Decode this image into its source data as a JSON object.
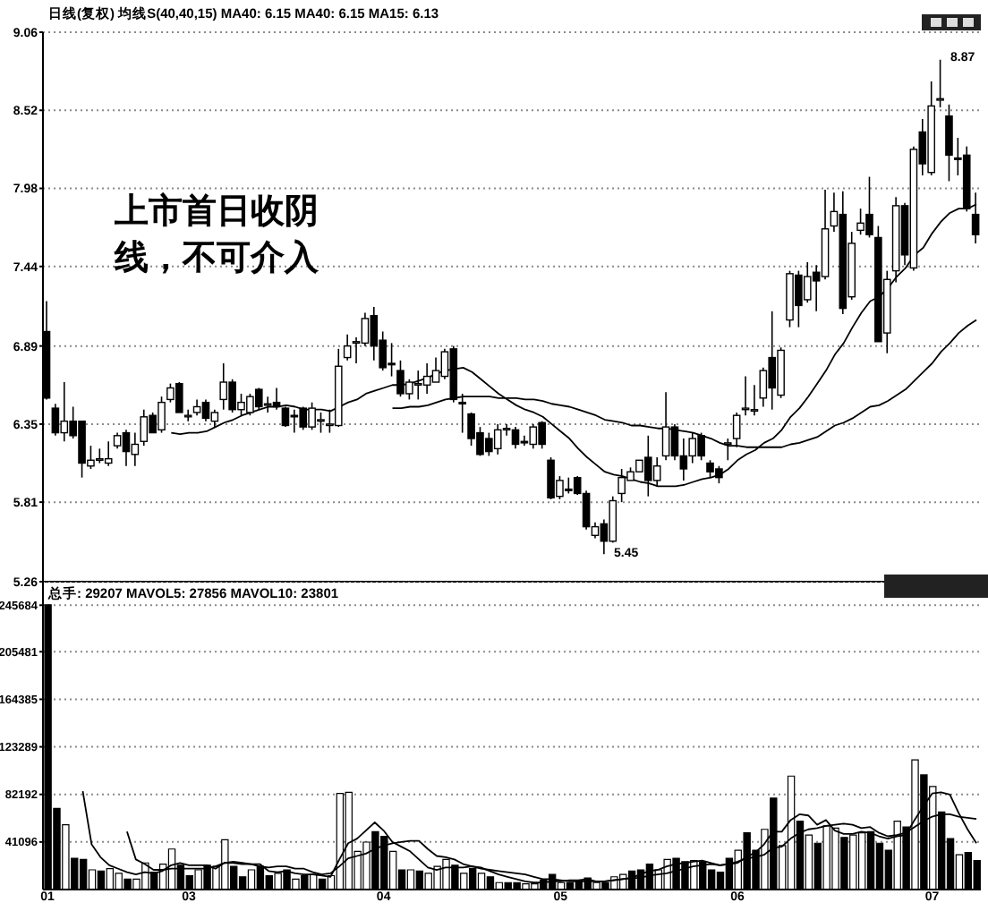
{
  "chart_data": [
    {
      "type": "candlestick",
      "title": "日线(复权) 均线S(40,40,15) MA40: 6.15 MA40: 6.15 MA15: 6.13",
      "categories": [
        "01",
        null,
        null,
        null,
        null,
        null,
        null,
        null,
        null,
        null,
        null,
        null,
        null,
        null,
        null,
        null,
        "03",
        null,
        null,
        null,
        null,
        null,
        null,
        null,
        null,
        null,
        null,
        null,
        null,
        null,
        null,
        null,
        null,
        null,
        null,
        null,
        null,
        null,
        "04",
        null,
        null,
        null,
        null,
        null,
        null,
        null,
        null,
        null,
        null,
        null,
        null,
        null,
        null,
        null,
        null,
        null,
        null,
        null,
        "05",
        null,
        null,
        null,
        null,
        null,
        null,
        null,
        null,
        null,
        null,
        null,
        null,
        null,
        null,
        null,
        null,
        null,
        null,
        null,
        "06",
        null,
        null,
        null,
        null,
        null,
        null,
        null,
        null,
        null,
        null,
        null,
        null,
        null,
        null,
        null,
        null,
        null,
        null,
        null,
        null,
        null,
        "07",
        null,
        null,
        null,
        null,
        null
      ],
      "tick_labels": "y",
      "ylim": [
        5.26,
        9.06
      ],
      "yticks": [
        5.26,
        5.81,
        6.35,
        6.89,
        7.44,
        7.98,
        8.52,
        9.06
      ],
      "grid": "y",
      "ohlc": [
        [
          6.99,
          7.2,
          6.52,
          6.53
        ],
        [
          6.46,
          6.49,
          6.27,
          6.29
        ],
        [
          6.29,
          6.64,
          6.23,
          6.37
        ],
        [
          6.37,
          6.47,
          6.25,
          6.27
        ],
        [
          6.37,
          6.37,
          5.98,
          6.08
        ],
        [
          6.06,
          6.2,
          6.04,
          6.1
        ],
        [
          6.1,
          6.18,
          6.08,
          6.11
        ],
        [
          6.08,
          6.23,
          6.06,
          6.11
        ],
        [
          6.2,
          6.29,
          6.18,
          6.27
        ],
        [
          6.29,
          6.31,
          6.06,
          6.16
        ],
        [
          6.14,
          6.29,
          6.06,
          6.21
        ],
        [
          6.23,
          6.45,
          6.2,
          6.4
        ],
        [
          6.41,
          6.43,
          6.29,
          6.29
        ],
        [
          6.31,
          6.54,
          6.29,
          6.5
        ],
        [
          6.52,
          6.63,
          6.5,
          6.6
        ],
        [
          6.63,
          6.64,
          6.43,
          6.43
        ],
        [
          6.4,
          6.45,
          6.37,
          6.41
        ],
        [
          6.43,
          6.52,
          6.41,
          6.47
        ],
        [
          6.5,
          6.52,
          6.37,
          6.39
        ],
        [
          6.37,
          6.45,
          6.33,
          6.43
        ],
        [
          6.52,
          6.77,
          6.45,
          6.64
        ],
        [
          6.64,
          6.66,
          6.43,
          6.45
        ],
        [
          6.45,
          6.56,
          6.41,
          6.5
        ],
        [
          6.43,
          6.56,
          6.41,
          6.54
        ],
        [
          6.59,
          6.6,
          6.45,
          6.47
        ],
        [
          6.48,
          6.54,
          6.43,
          6.49
        ],
        [
          6.5,
          6.6,
          6.45,
          6.47
        ],
        [
          6.46,
          6.47,
          6.33,
          6.34
        ],
        [
          6.41,
          6.45,
          6.29,
          6.4
        ],
        [
          6.46,
          6.47,
          6.31,
          6.33
        ],
        [
          6.33,
          6.5,
          6.31,
          6.46
        ],
        [
          6.37,
          6.43,
          6.29,
          6.38
        ],
        [
          6.34,
          6.45,
          6.29,
          6.35
        ],
        [
          6.34,
          6.87,
          6.33,
          6.75
        ],
        [
          6.81,
          6.97,
          6.79,
          6.89
        ],
        [
          6.91,
          6.95,
          6.77,
          6.92
        ],
        [
          6.91,
          7.12,
          6.89,
          7.08
        ],
        [
          7.1,
          7.16,
          6.79,
          6.89
        ],
        [
          6.93,
          6.99,
          6.72,
          6.74
        ],
        [
          6.77,
          6.91,
          6.68,
          6.76
        ],
        [
          6.72,
          6.79,
          6.54,
          6.56
        ],
        [
          6.56,
          6.66,
          6.52,
          6.64
        ],
        [
          6.62,
          6.72,
          6.52,
          6.63
        ],
        [
          6.62,
          6.77,
          6.56,
          6.68
        ],
        [
          6.64,
          6.81,
          6.64,
          6.72
        ],
        [
          6.68,
          6.87,
          6.66,
          6.85
        ],
        [
          6.87,
          6.89,
          6.5,
          6.52
        ],
        [
          6.5,
          6.56,
          6.29,
          6.49
        ],
        [
          6.42,
          6.43,
          6.2,
          6.25
        ],
        [
          6.29,
          6.33,
          6.13,
          6.14
        ],
        [
          6.25,
          6.29,
          6.13,
          6.16
        ],
        [
          6.18,
          6.35,
          6.14,
          6.31
        ],
        [
          6.31,
          6.35,
          6.27,
          6.32
        ],
        [
          6.31,
          6.33,
          6.18,
          6.21
        ],
        [
          6.23,
          6.27,
          6.2,
          6.22
        ],
        [
          6.21,
          6.35,
          6.18,
          6.33
        ],
        [
          6.36,
          6.37,
          6.18,
          6.21
        ],
        [
          6.1,
          6.12,
          5.83,
          5.84
        ],
        [
          5.85,
          5.99,
          5.83,
          5.96
        ],
        [
          5.9,
          5.98,
          5.87,
          5.89
        ],
        [
          5.98,
          5.99,
          5.86,
          5.87
        ],
        [
          5.87,
          5.89,
          5.62,
          5.64
        ],
        [
          5.58,
          5.67,
          5.56,
          5.64
        ],
        [
          5.66,
          5.69,
          5.45,
          5.54
        ],
        [
          5.54,
          5.85,
          5.53,
          5.82
        ],
        [
          5.87,
          6.04,
          5.81,
          5.98
        ],
        [
          5.96,
          6.05,
          5.96,
          6.02
        ],
        [
          6.02,
          6.1,
          6.02,
          6.1
        ],
        [
          6.12,
          6.27,
          5.85,
          5.96
        ],
        [
          5.96,
          6.12,
          5.92,
          6.06
        ],
        [
          6.13,
          6.57,
          6.1,
          6.33
        ],
        [
          6.33,
          6.35,
          6.1,
          6.13
        ],
        [
          6.13,
          6.25,
          5.96,
          6.04
        ],
        [
          6.13,
          6.29,
          6.08,
          6.25
        ],
        [
          6.27,
          6.29,
          6.1,
          6.13
        ],
        [
          6.08,
          6.1,
          5.98,
          6.02
        ],
        [
          6.04,
          6.06,
          5.94,
          5.98
        ],
        [
          6.21,
          6.25,
          6.1,
          6.22
        ],
        [
          6.25,
          6.43,
          6.19,
          6.41
        ],
        [
          6.45,
          6.68,
          6.41,
          6.46
        ],
        [
          6.44,
          6.62,
          6.41,
          6.45
        ],
        [
          6.53,
          6.74,
          6.47,
          6.72
        ],
        [
          6.81,
          7.13,
          6.45,
          6.6
        ],
        [
          6.55,
          6.88,
          6.53,
          6.86
        ],
        [
          7.07,
          7.41,
          7.02,
          7.39
        ],
        [
          7.38,
          7.41,
          7.02,
          7.17
        ],
        [
          7.21,
          7.47,
          7.19,
          7.37
        ],
        [
          7.4,
          7.45,
          7.13,
          7.34
        ],
        [
          7.37,
          7.97,
          7.35,
          7.7
        ],
        [
          7.72,
          7.95,
          7.68,
          7.82
        ],
        [
          7.8,
          7.96,
          7.11,
          7.15
        ],
        [
          7.23,
          7.68,
          7.21,
          7.6
        ],
        [
          7.69,
          7.84,
          7.66,
          7.74
        ],
        [
          7.8,
          8.06,
          7.64,
          7.66
        ],
        [
          7.64,
          7.72,
          6.92,
          6.92
        ],
        [
          6.98,
          7.41,
          6.84,
          7.35
        ],
        [
          7.41,
          7.92,
          7.33,
          7.86
        ],
        [
          7.86,
          7.88,
          7.45,
          7.52
        ],
        [
          7.43,
          8.27,
          7.41,
          8.25
        ],
        [
          8.37,
          8.46,
          8.07,
          8.15
        ],
        [
          8.09,
          8.72,
          8.07,
          8.55
        ],
        [
          8.59,
          8.87,
          8.54,
          8.6
        ],
        [
          8.48,
          8.56,
          8.03,
          8.21
        ],
        [
          8.19,
          8.33,
          8.07,
          8.18
        ],
        [
          8.21,
          8.27,
          7.82,
          7.84
        ],
        [
          7.8,
          7.95,
          7.6,
          7.66
        ]
      ],
      "colors": [
        "#000000",
        "#000000",
        "#ffffff",
        "#000000",
        "#000000",
        "#ffffff",
        "#ffffff",
        "#ffffff",
        "#ffffff",
        "#000000",
        "#ffffff",
        "#ffffff",
        "#000000",
        "#ffffff",
        "#ffffff",
        "#000000",
        "#ffffff",
        "#ffffff",
        "#000000",
        "#ffffff",
        "#ffffff",
        "#000000",
        "#ffffff",
        "#ffffff",
        "#000000",
        "#ffffff",
        "#000000",
        "#000000",
        "#000000",
        "#000000",
        "#ffffff",
        "#ffffff",
        "#ffffff",
        "#ffffff",
        "#ffffff",
        "#ffffff",
        "#ffffff",
        "#000000",
        "#000000",
        "#000000",
        "#000000",
        "#ffffff",
        "#ffffff",
        "#ffffff",
        "#ffffff",
        "#ffffff",
        "#000000",
        "#000000",
        "#000000",
        "#000000",
        "#000000",
        "#ffffff",
        "#ffffff",
        "#000000",
        "#000000",
        "#ffffff",
        "#000000",
        "#000000",
        "#ffffff",
        "#000000",
        "#000000",
        "#000000",
        "#ffffff",
        "#000000",
        "#ffffff",
        "#ffffff",
        "#ffffff",
        "#ffffff",
        "#000000",
        "#ffffff",
        "#ffffff",
        "#000000",
        "#000000",
        "#ffffff",
        "#000000",
        "#000000",
        "#000000",
        "#ffffff",
        "#ffffff",
        "#ffffff",
        "#ffffff",
        "#ffffff",
        "#000000",
        "#ffffff",
        "#ffffff",
        "#000000",
        "#ffffff",
        "#000000",
        "#ffffff",
        "#ffffff",
        "#000000",
        "#ffffff",
        "#ffffff",
        "#000000",
        "#000000",
        "#ffffff",
        "#ffffff",
        "#000000",
        "#ffffff",
        "#000000",
        "#ffffff",
        "#ffffff",
        "#000000",
        "#000000",
        "#000000",
        "#000000"
      ],
      "series": [
        {
          "type": "line",
          "color": "#000000",
          "values": [
            null,
            null,
            null,
            null,
            null,
            null,
            null,
            null,
            null,
            null,
            null,
            null,
            null,
            null,
            6.29,
            6.28,
            6.29,
            6.29,
            6.3,
            6.33,
            6.36,
            6.38,
            6.41,
            6.43,
            6.45,
            6.47,
            6.47,
            6.48,
            6.47,
            6.45,
            6.45,
            6.45,
            6.44,
            6.47,
            6.5,
            6.52,
            6.56,
            6.58,
            6.6,
            6.62,
            6.62,
            6.63,
            6.65,
            6.67,
            6.7,
            6.72,
            6.73,
            6.74,
            6.71,
            6.66,
            6.61,
            6.56,
            6.52,
            6.48,
            6.45,
            6.43,
            6.4,
            6.35,
            6.3,
            6.25,
            6.18,
            6.12,
            6.07,
            6.02,
            6.0,
            5.99,
            5.97,
            5.95,
            5.94,
            5.92,
            5.92,
            5.92,
            5.93,
            5.95,
            5.97,
            5.98,
            6.0,
            6.04,
            6.1,
            6.14,
            6.17,
            6.22,
            6.25,
            6.31,
            6.4,
            6.46,
            6.54,
            6.63,
            6.72,
            6.83,
            6.91,
            7.02,
            7.12,
            7.2,
            7.23,
            7.29,
            7.37,
            7.43,
            7.52,
            7.57,
            7.67,
            7.75,
            7.81,
            7.84,
            7.84,
            7.87
          ]
        },
        {
          "type": "line",
          "color": "#000000",
          "values": [
            null,
            null,
            null,
            null,
            null,
            null,
            null,
            null,
            null,
            null,
            null,
            null,
            null,
            null,
            null,
            null,
            null,
            null,
            null,
            null,
            null,
            null,
            null,
            null,
            null,
            null,
            null,
            null,
            null,
            null,
            null,
            null,
            null,
            null,
            null,
            null,
            null,
            null,
            null,
            6.46,
            6.46,
            6.47,
            6.47,
            6.48,
            6.5,
            6.52,
            6.53,
            6.54,
            6.54,
            6.54,
            6.54,
            6.53,
            6.53,
            6.53,
            6.52,
            6.52,
            6.51,
            6.49,
            6.48,
            6.47,
            6.45,
            6.43,
            6.41,
            6.38,
            6.37,
            6.36,
            6.34,
            6.34,
            6.33,
            6.32,
            6.32,
            6.31,
            6.3,
            6.29,
            6.27,
            6.25,
            6.22,
            6.2,
            6.2,
            6.19,
            6.19,
            6.19,
            6.19,
            6.19,
            6.21,
            6.22,
            6.24,
            6.26,
            6.3,
            6.34,
            6.36,
            6.39,
            6.43,
            6.47,
            6.48,
            6.51,
            6.55,
            6.59,
            6.65,
            6.71,
            6.77,
            6.85,
            6.91,
            6.98,
            7.03,
            7.07
          ]
        }
      ],
      "annotations": [
        "上市首日收阴线，不可介入",
        "5.45",
        "8.87"
      ]
    },
    {
      "type": "bar",
      "title": "总手: 29207 MAVOL5: 27856 MAVOL10: 23801",
      "categories": [
        "01",
        null,
        null,
        null,
        null,
        null,
        null,
        null,
        null,
        null,
        null,
        null,
        null,
        null,
        null,
        null,
        "03",
        null,
        null,
        null,
        null,
        null,
        null,
        null,
        null,
        null,
        null,
        null,
        null,
        null,
        null,
        null,
        null,
        null,
        null,
        null,
        null,
        null,
        "04",
        null,
        null,
        null,
        null,
        null,
        null,
        null,
        null,
        null,
        null,
        null,
        null,
        null,
        null,
        null,
        null,
        null,
        null,
        null,
        "05",
        null,
        null,
        null,
        null,
        null,
        null,
        null,
        null,
        null,
        null,
        null,
        null,
        null,
        null,
        null,
        null,
        null,
        null,
        null,
        "06",
        null,
        null,
        null,
        null,
        null,
        null,
        null,
        null,
        null,
        null,
        null,
        null,
        null,
        null,
        null,
        null,
        null,
        null,
        null,
        null,
        null,
        "07",
        null,
        null,
        null,
        null,
        null
      ],
      "ylim": [
        0,
        266000
      ],
      "yticks": [
        41096,
        82192,
        123289,
        164385,
        205481,
        245684
      ],
      "grid": "y",
      "series": [
        {
          "values": [
            246000,
            70000,
            56000,
            27000,
            26000,
            17000,
            16000,
            18000,
            14000,
            9000,
            9000,
            23000,
            15000,
            22000,
            35000,
            21000,
            12000,
            17000,
            21000,
            20000,
            43000,
            20000,
            11000,
            17000,
            20000,
            12000,
            14000,
            17000,
            9000,
            12000,
            13000,
            9000,
            12000,
            83000,
            84000,
            33000,
            41000,
            50000,
            46000,
            33000,
            17000,
            17000,
            16000,
            14000,
            20000,
            26000,
            21000,
            14000,
            18000,
            14000,
            11000,
            6000,
            6000,
            6000,
            5000,
            5000,
            8000,
            13000,
            6000,
            6000,
            8000,
            10000,
            6000,
            6000,
            11000,
            13000,
            16000,
            17000,
            22000,
            17000,
            26000,
            27000,
            24000,
            25000,
            24000,
            17000,
            15000,
            27000,
            34000,
            49000,
            34000,
            52000,
            79000,
            38000,
            98000,
            59000,
            47000,
            40000,
            55000,
            53000,
            45000,
            47000,
            49000,
            50000,
            40000,
            34000,
            59000,
            54000,
            112000,
            99000,
            89000,
            67000,
            44000,
            30000,
            32000,
            25000
          ],
          "colors": [
            "#000000",
            "#000000",
            "#ffffff",
            "#000000",
            "#000000",
            "#ffffff",
            "#000000",
            "#ffffff",
            "#ffffff",
            "#000000",
            "#ffffff",
            "#ffffff",
            "#000000",
            "#ffffff",
            "#ffffff",
            "#000000",
            "#000000",
            "#ffffff",
            "#000000",
            "#ffffff",
            "#ffffff",
            "#000000",
            "#000000",
            "#ffffff",
            "#000000",
            "#000000",
            "#ffffff",
            "#000000",
            "#ffffff",
            "#000000",
            "#ffffff",
            "#000000",
            "#ffffff",
            "#ffffff",
            "#ffffff",
            "#ffffff",
            "#ffffff",
            "#000000",
            "#000000",
            "#ffffff",
            "#000000",
            "#ffffff",
            "#000000",
            "#ffffff",
            "#ffffff",
            "#ffffff",
            "#000000",
            "#ffffff",
            "#000000",
            "#ffffff",
            "#000000",
            "#ffffff",
            "#000000",
            "#000000",
            "#ffffff",
            "#ffffff",
            "#000000",
            "#000000",
            "#ffffff",
            "#000000",
            "#000000",
            "#000000",
            "#ffffff",
            "#000000",
            "#ffffff",
            "#ffffff",
            "#000000",
            "#000000",
            "#000000",
            "#ffffff",
            "#ffffff",
            "#000000",
            "#000000",
            "#ffffff",
            "#000000",
            "#000000",
            "#000000",
            "#000000",
            "#ffffff",
            "#000000",
            "#000000",
            "#ffffff",
            "#000000",
            "#ffffff",
            "#ffffff",
            "#000000",
            "#ffffff",
            "#000000",
            "#ffffff",
            "#ffffff",
            "#000000",
            "#ffffff",
            "#ffffff",
            "#000000",
            "#000000",
            "#000000",
            "#ffffff",
            "#000000",
            "#ffffff",
            "#000000",
            "#ffffff",
            "#000000",
            "#000000",
            "#ffffff",
            "#000000",
            "#000000"
          ]
        },
        {
          "type": "line",
          "color": "#000000",
          "values": [
            null,
            null,
            null,
            null,
            85000,
            39000,
            28000,
            21000,
            18000,
            15000,
            13000,
            15000,
            14000,
            16000,
            21000,
            23000,
            21000,
            21000,
            21000,
            18000,
            23000,
            24000,
            23000,
            22000,
            22000,
            16000,
            15000,
            16000,
            14000,
            13000,
            13000,
            12000,
            11000,
            26000,
            40000,
            44000,
            51000,
            58000,
            51000,
            41000,
            37000,
            33000,
            26000,
            19000,
            17000,
            19000,
            19000,
            19000,
            20000,
            19000,
            16000,
            13000,
            11000,
            9000,
            7000,
            6000,
            6000,
            7000,
            7000,
            8000,
            8000,
            9000,
            7000,
            7000,
            8000,
            9000,
            10000,
            13000,
            16000,
            17000,
            20000,
            22000,
            23000,
            24000,
            25000,
            23000,
            21000,
            22000,
            23000,
            28000,
            32000,
            39000,
            50000,
            50000,
            60000,
            65000,
            64000,
            56000,
            60000,
            51000,
            48000,
            48000,
            50000,
            49000,
            46000,
            44000,
            46000,
            47000,
            60000,
            72000,
            83000,
            84000,
            82000,
            66000,
            52000,
            40000
          ]
        },
        {
          "type": "line",
          "color": "#000000",
          "values": [
            null,
            null,
            null,
            null,
            null,
            null,
            null,
            null,
            null,
            50000,
            26000,
            22000,
            17000,
            17000,
            18000,
            18000,
            18000,
            18000,
            18000,
            20000,
            23000,
            23000,
            22000,
            22000,
            20000,
            19000,
            20000,
            20000,
            18000,
            18000,
            15000,
            13000,
            14000,
            20000,
            27000,
            29000,
            31000,
            35000,
            38000,
            40000,
            41000,
            42000,
            42000,
            35000,
            29000,
            28000,
            26000,
            22000,
            20000,
            18000,
            17000,
            16000,
            15000,
            14000,
            13000,
            11000,
            9000,
            9000,
            8000,
            7000,
            7000,
            7000,
            7000,
            7000,
            8000,
            9000,
            10000,
            10000,
            12000,
            13000,
            14000,
            16000,
            18000,
            20000,
            21000,
            22000,
            21000,
            22000,
            24000,
            27000,
            28000,
            30000,
            36000,
            37000,
            44000,
            49000,
            52000,
            53000,
            55000,
            56000,
            57000,
            56000,
            53000,
            54000,
            49000,
            46000,
            47000,
            49000,
            54000,
            59000,
            63000,
            65000,
            65000,
            63000,
            62000,
            61000
          ]
        }
      ]
    }
  ]
}
